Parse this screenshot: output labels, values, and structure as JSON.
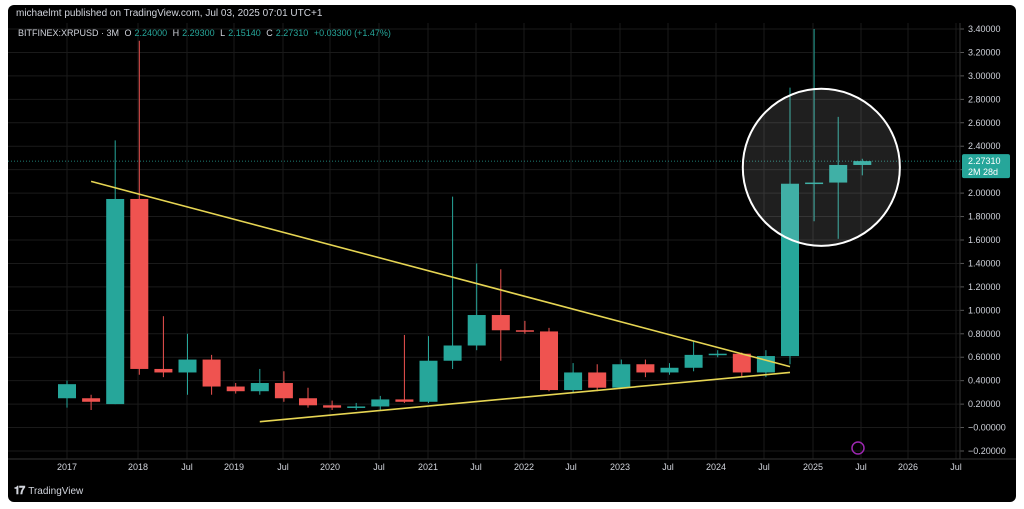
{
  "header": {
    "author_line": "michaelmt published on TradingView.com, Jul 03, 2025 07:01 UTC+1",
    "symbol": "BITFINEX:XRPUSD · 3M",
    "ohlc": {
      "o_label": "O",
      "o_value": "2.24000",
      "h_label": "H",
      "h_value": "2.29300",
      "l_label": "L",
      "l_value": "2.15140",
      "c_label": "C",
      "c_value": "2.27310",
      "change": "+0.03300 (+1.47%)"
    }
  },
  "footer": {
    "brand": "TradingView",
    "logo_icon": "tradingview-logo-icon"
  },
  "price_badge": {
    "price": "2.27310",
    "countdown": "2M 28d"
  },
  "colors": {
    "up": "#26a69a",
    "down": "#ef5350",
    "trendline": "#e6d553",
    "grid": "#1a1a1a",
    "text": "#d1d4dc",
    "circle": "#ffffff"
  },
  "chart_data": {
    "type": "candlestick",
    "interval": "3M",
    "y_tick_labels": [
      "3.40000",
      "3.20000",
      "3.00000",
      "2.80000",
      "2.60000",
      "2.40000",
      "2.20000",
      "2.00000",
      "1.80000",
      "1.60000",
      "1.40000",
      "1.20000",
      "1.00000",
      "0.80000",
      "0.60000",
      "0.40000",
      "0.20000",
      "−0.00000",
      "−0.20000"
    ],
    "ylim": [
      -0.2,
      3.4
    ],
    "x_tick_labels": [
      "2017",
      "2018",
      "Jul",
      "2019",
      "Jul",
      "2020",
      "Jul",
      "2021",
      "Jul",
      "2022",
      "Jul",
      "2023",
      "Jul",
      "2024",
      "Jul",
      "2025",
      "Jul",
      "2026",
      "Jul"
    ],
    "candles": [
      {
        "o": 0.25,
        "h": 0.4,
        "l": 0.17,
        "c": 0.37
      },
      {
        "o": 0.25,
        "h": 0.28,
        "l": 0.15,
        "c": 0.22
      },
      {
        "o": 0.2,
        "h": 2.45,
        "l": 0.2,
        "c": 1.95
      },
      {
        "o": 1.95,
        "h": 3.3,
        "l": 0.45,
        "c": 0.5
      },
      {
        "o": 0.5,
        "h": 0.95,
        "l": 0.43,
        "c": 0.47
      },
      {
        "o": 0.47,
        "h": 0.8,
        "l": 0.28,
        "c": 0.58
      },
      {
        "o": 0.58,
        "h": 0.62,
        "l": 0.28,
        "c": 0.35
      },
      {
        "o": 0.35,
        "h": 0.38,
        "l": 0.29,
        "c": 0.31
      },
      {
        "o": 0.31,
        "h": 0.5,
        "l": 0.28,
        "c": 0.38
      },
      {
        "o": 0.38,
        "h": 0.48,
        "l": 0.22,
        "c": 0.25
      },
      {
        "o": 0.25,
        "h": 0.34,
        "l": 0.17,
        "c": 0.19
      },
      {
        "o": 0.19,
        "h": 0.23,
        "l": 0.15,
        "c": 0.17
      },
      {
        "o": 0.17,
        "h": 0.21,
        "l": 0.15,
        "c": 0.18
      },
      {
        "o": 0.18,
        "h": 0.27,
        "l": 0.15,
        "c": 0.24
      },
      {
        "o": 0.24,
        "h": 0.79,
        "l": 0.21,
        "c": 0.22
      },
      {
        "o": 0.22,
        "h": 0.78,
        "l": 0.21,
        "c": 0.57
      },
      {
        "o": 0.57,
        "h": 1.97,
        "l": 0.5,
        "c": 0.7
      },
      {
        "o": 0.7,
        "h": 1.4,
        "l": 0.66,
        "c": 0.96
      },
      {
        "o": 0.96,
        "h": 1.35,
        "l": 0.57,
        "c": 0.83
      },
      {
        "o": 0.83,
        "h": 0.91,
        "l": 0.8,
        "c": 0.82
      },
      {
        "o": 0.82,
        "h": 0.85,
        "l": 0.31,
        "c": 0.32
      },
      {
        "o": 0.32,
        "h": 0.55,
        "l": 0.3,
        "c": 0.47
      },
      {
        "o": 0.47,
        "h": 0.54,
        "l": 0.31,
        "c": 0.34
      },
      {
        "o": 0.34,
        "h": 0.58,
        "l": 0.33,
        "c": 0.54
      },
      {
        "o": 0.54,
        "h": 0.58,
        "l": 0.43,
        "c": 0.47
      },
      {
        "o": 0.47,
        "h": 0.55,
        "l": 0.45,
        "c": 0.51
      },
      {
        "o": 0.51,
        "h": 0.74,
        "l": 0.48,
        "c": 0.62
      },
      {
        "o": 0.62,
        "h": 0.66,
        "l": 0.6,
        "c": 0.63
      },
      {
        "o": 0.63,
        "h": 0.64,
        "l": 0.43,
        "c": 0.47
      },
      {
        "o": 0.47,
        "h": 0.66,
        "l": 0.43,
        "c": 0.61
      },
      {
        "o": 0.61,
        "h": 2.9,
        "l": 0.54,
        "c": 2.08
      },
      {
        "o": 2.08,
        "h": 3.4,
        "l": 1.76,
        "c": 2.09
      },
      {
        "o": 2.09,
        "h": 2.65,
        "l": 1.61,
        "c": 2.24
      },
      {
        "o": 2.24,
        "h": 2.293,
        "l": 2.1514,
        "c": 2.2731
      }
    ],
    "annotations": [
      {
        "type": "trendline",
        "name": "upper",
        "from": {
          "index": 1,
          "price": 2.1
        },
        "to": {
          "index": 30,
          "price": 0.52
        }
      },
      {
        "type": "trendline",
        "name": "lower",
        "from": {
          "index": 8,
          "price": 0.05
        },
        "to": {
          "index": 30,
          "price": 0.47
        }
      },
      {
        "type": "circle",
        "name": "highlight",
        "center": {
          "index": 31.3,
          "price": 2.22
        },
        "radius_price": 0.67
      }
    ]
  }
}
